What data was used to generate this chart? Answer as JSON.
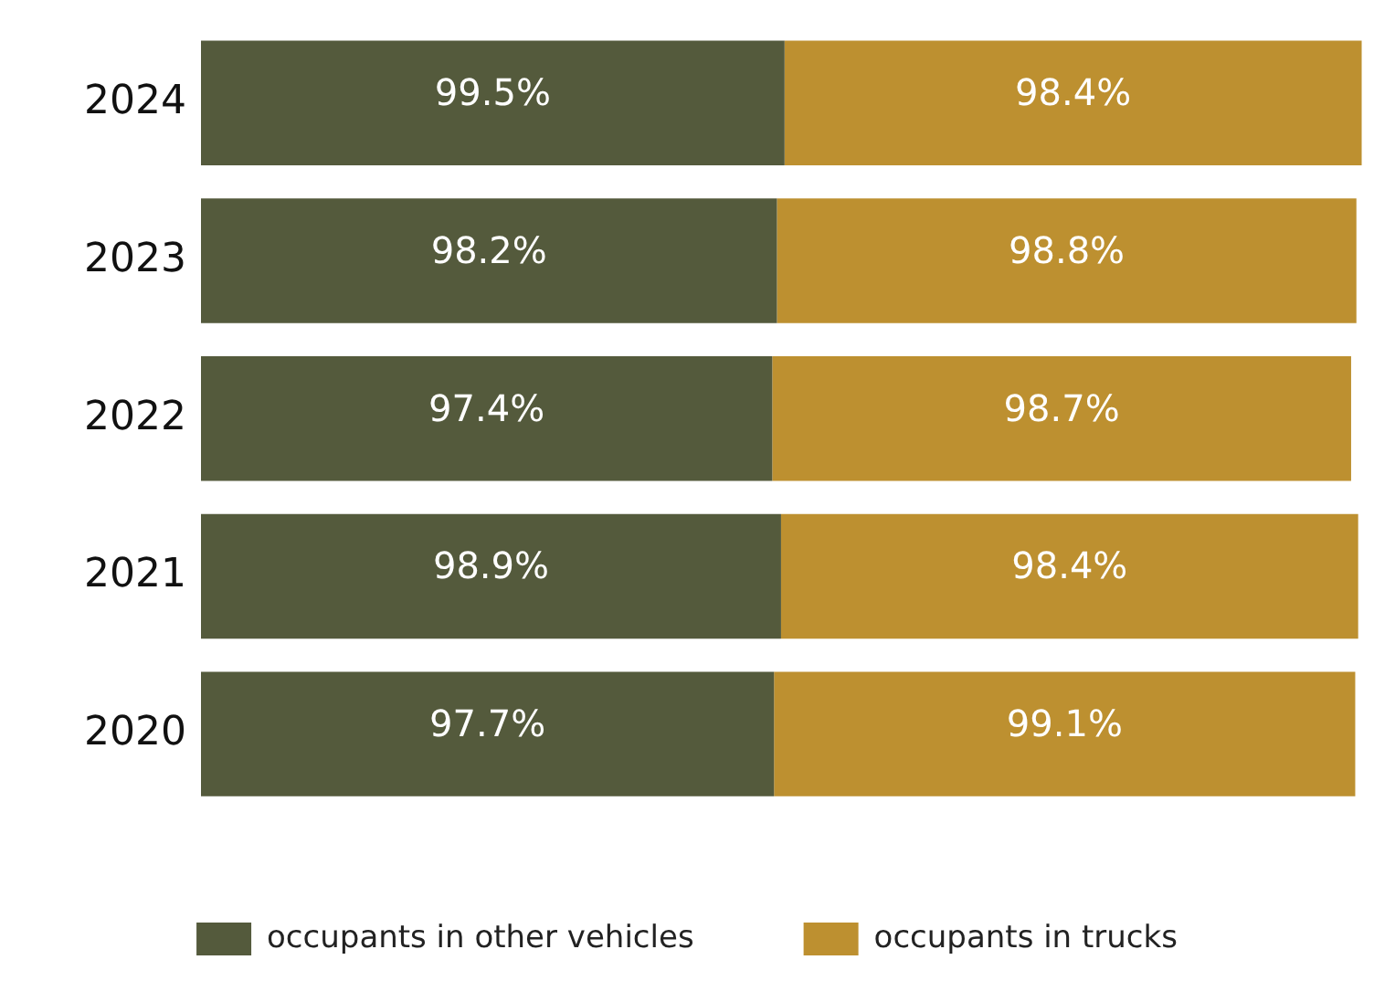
{
  "chart_data": {
    "type": "bar",
    "orientation": "horizontal",
    "stacked": true,
    "categories": [
      "2024",
      "2023",
      "2022",
      "2021",
      "2020"
    ],
    "series": [
      {
        "name": "occupants in other vehicles",
        "color": "#545a3c",
        "values": [
          99.5,
          98.2,
          97.4,
          98.9,
          97.7
        ],
        "value_labels": [
          "99.5%",
          "98.2%",
          "97.4%",
          "98.9%",
          "97.7%"
        ]
      },
      {
        "name": "occupants in trucks",
        "color": "#bd9030",
        "values": [
          98.4,
          98.8,
          98.7,
          98.4,
          99.1
        ],
        "value_labels": [
          "98.4%",
          "98.8%",
          "98.7%",
          "98.4%",
          "99.1%"
        ]
      }
    ],
    "legend": "bottom"
  }
}
